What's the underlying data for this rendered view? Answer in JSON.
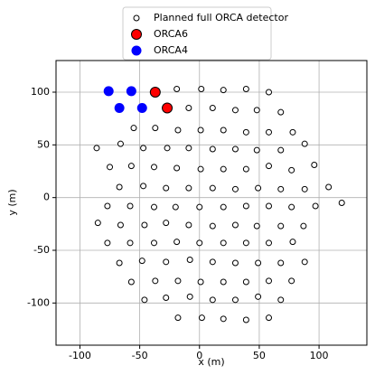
{
  "chart_data": {
    "type": "scatter",
    "xlabel": "x (m)",
    "ylabel": "y (m)",
    "xlim": [
      -120,
      140
    ],
    "ylim": [
      -140,
      130
    ],
    "xticks": [
      -100,
      -50,
      0,
      50,
      100
    ],
    "yticks": [
      -100,
      -50,
      0,
      50,
      100
    ],
    "grid": true,
    "legend": "top center outside",
    "series": [
      {
        "name": "Planned full ORCA detector",
        "color": "#ffffff",
        "edgecolor": "#000000",
        "x": [
          -19,
          1.5,
          20,
          39,
          58,
          -9,
          11,
          30,
          48,
          68,
          -55,
          -37,
          -18,
          1,
          20,
          39,
          58,
          78,
          -86,
          -66,
          -47,
          -27,
          -9,
          11,
          30,
          48,
          68,
          88,
          -75,
          -57,
          -38,
          -19,
          1,
          20,
          39,
          58,
          77,
          96,
          -67,
          -47,
          -28,
          -9,
          11,
          30,
          49,
          68,
          88,
          108,
          -77,
          -58,
          -38,
          -20,
          0,
          20,
          39,
          58,
          77,
          97,
          119,
          -85,
          -66,
          -46,
          -28,
          -9,
          11,
          30,
          48,
          68,
          87,
          -77,
          -58,
          -38,
          -19,
          0,
          20,
          39,
          58,
          78,
          -67,
          -48,
          -28,
          -8,
          11,
          30,
          49,
          68,
          88,
          -57,
          -37,
          -18,
          1,
          20,
          39,
          58,
          77,
          -46,
          -28,
          -8,
          11,
          30,
          49,
          68,
          -18,
          2,
          20,
          39,
          58
        ],
        "values": [
          103,
          103,
          102,
          103,
          100,
          85,
          85,
          83,
          83,
          81,
          66,
          66,
          64,
          64,
          64,
          62,
          62,
          62,
          47,
          51,
          47,
          47,
          47,
          46,
          46,
          45,
          45,
          51,
          29,
          30,
          29,
          28,
          27,
          27,
          27,
          30,
          26,
          31,
          10,
          11,
          9,
          9,
          9,
          8,
          9,
          8,
          8,
          10,
          -8,
          -8,
          -9,
          -9,
          -9,
          -9,
          -8,
          -8,
          -9,
          -8,
          -5,
          -24,
          -26,
          -26,
          -24,
          -26,
          -27,
          -26,
          -27,
          -27,
          -27,
          -43,
          -43,
          -43,
          -42,
          -43,
          -43,
          -43,
          -43,
          -42,
          -62,
          -60,
          -61,
          -59,
          -61,
          -62,
          -62,
          -62,
          -61,
          -80,
          -79,
          -79,
          -80,
          -80,
          -80,
          -79,
          -79,
          -97,
          -95,
          -94,
          -97,
          -97,
          -94,
          -97,
          -114,
          -114,
          -115,
          -116,
          -114
        ]
      },
      {
        "name": "ORCA6",
        "color": "#ff0000",
        "edgecolor": "#000000",
        "x": [
          -37,
          -27
        ],
        "values": [
          100,
          85
        ]
      },
      {
        "name": "ORCA4",
        "color": "#0000ff",
        "x": [
          -76,
          -57,
          -67,
          -48
        ],
        "values": [
          101,
          101,
          85,
          85
        ]
      }
    ]
  }
}
